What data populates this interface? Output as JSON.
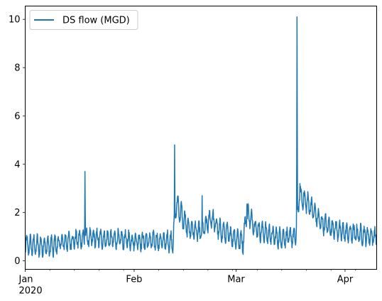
{
  "chart_data": {
    "type": "line",
    "title": "",
    "xlabel": "",
    "ylabel": "",
    "x_range_days": [
      0,
      100
    ],
    "ylim": [
      -0.35,
      10.55
    ],
    "grid": false,
    "legend_placement": "top-left",
    "x_ticks": [
      {
        "day": 0,
        "label": "Jan",
        "sublabel": "2020"
      },
      {
        "day": 31,
        "label": "Feb",
        "sublabel": ""
      },
      {
        "day": 60,
        "label": "Mar",
        "sublabel": ""
      },
      {
        "day": 91,
        "label": "Apr",
        "sublabel": ""
      }
    ],
    "x_minor_ticks_days": [
      7,
      14,
      21,
      28,
      38,
      45,
      52,
      59,
      66,
      73,
      80,
      87,
      94
    ],
    "y_ticks": [
      0,
      2,
      4,
      6,
      8,
      10
    ],
    "series": [
      {
        "name": "DS flow (MGD)",
        "color": "#1f77b4",
        "baseline_points": [
          [
            0,
            0.65
          ],
          [
            8,
            0.6
          ],
          [
            10,
            0.75
          ],
          [
            17,
            0.95
          ],
          [
            31,
            0.85
          ],
          [
            42,
            0.8
          ],
          [
            43,
            2.4
          ],
          [
            46,
            1.4
          ],
          [
            50,
            1.15
          ],
          [
            53,
            1.8
          ],
          [
            55,
            1.3
          ],
          [
            62,
            0.8
          ],
          [
            63,
            2.0
          ],
          [
            66,
            1.3
          ],
          [
            72,
            0.95
          ],
          [
            77,
            1.0
          ],
          [
            78,
            2.7
          ],
          [
            81,
            2.3
          ],
          [
            84,
            1.6
          ],
          [
            90,
            1.2
          ],
          [
            100,
            1.0
          ]
        ],
        "amplitude_points": [
          [
            0,
            0.35
          ],
          [
            8,
            0.4
          ],
          [
            10,
            0.3
          ],
          [
            30,
            0.3
          ],
          [
            42,
            0.35
          ],
          [
            43,
            0.45
          ],
          [
            50,
            0.3
          ],
          [
            62,
            0.4
          ],
          [
            63,
            0.35
          ],
          [
            77,
            0.3
          ],
          [
            78,
            0.35
          ],
          [
            100,
            0.3
          ]
        ],
        "spikes": [
          {
            "day": 17.0,
            "value": 3.7
          },
          {
            "day": 42.5,
            "value": 4.8
          },
          {
            "day": 50.3,
            "value": 2.7
          },
          {
            "day": 63.1,
            "value": 2.35
          },
          {
            "day": 77.3,
            "value": 10.1
          },
          {
            "day": 78.2,
            "value": 3.2
          }
        ]
      }
    ]
  }
}
